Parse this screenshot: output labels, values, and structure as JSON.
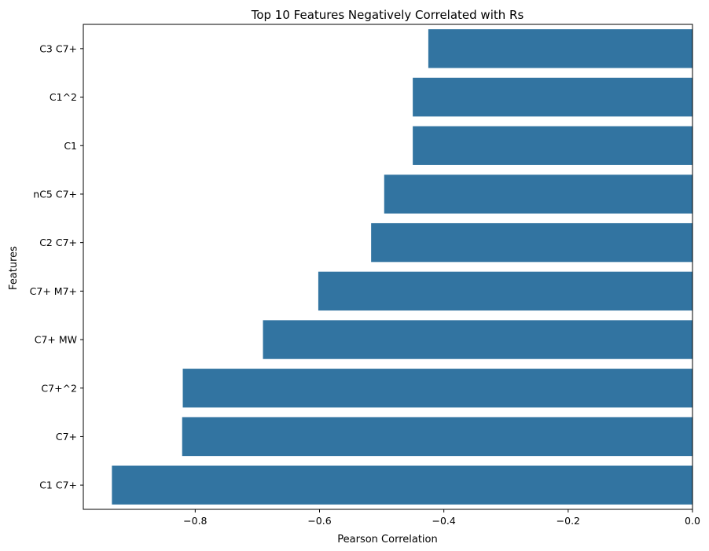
{
  "chart_data": {
    "type": "bar",
    "orientation": "horizontal",
    "title": "Top 10 Features Negatively Correlated with Rs",
    "xlabel": "Pearson Correlation",
    "ylabel": "Features",
    "categories": [
      "C3 C7+",
      "C1^2",
      "C1",
      "nC5 C7+",
      "C2 C7+",
      "C7+ M7+",
      "C7+ MW",
      "C7+^2",
      "C7+",
      "C1 C7+"
    ],
    "values": [
      -0.425,
      -0.45,
      -0.45,
      -0.496,
      -0.517,
      -0.602,
      -0.691,
      -0.82,
      -0.821,
      -0.934
    ],
    "xlim": [
      -0.98,
      0.0
    ],
    "xticks": [
      -0.8,
      -0.6,
      -0.4,
      -0.2,
      0.0
    ],
    "xtick_labels": [
      "−0.8",
      "−0.6",
      "−0.4",
      "−0.2",
      "0.0"
    ],
    "bar_color": "#3274a1",
    "grid": false,
    "legend": false
  }
}
